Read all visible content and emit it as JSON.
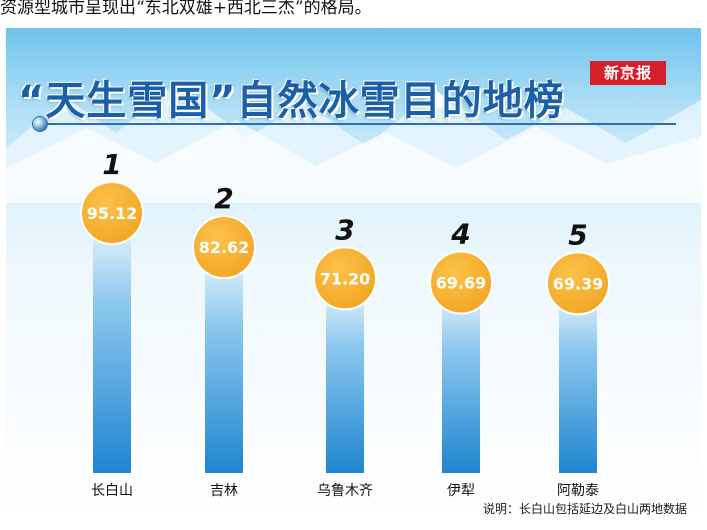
{
  "article": {
    "intro_text": "资源型城市呈现出“东北双雄+西北三杰”的格局。"
  },
  "infographic": {
    "title": "“天生雪国”自然冰雪目的地榜",
    "logo_text": "新京报",
    "note": "说明：长白山包括延边及白山两地数据"
  },
  "colors": {
    "bar_top": "#f4fafe",
    "bar_bottom": "#1f86cf",
    "bubble": "#f2a623",
    "bubble_border": "#ffffff",
    "title": "#1b5fa8",
    "logo_bg": "#d4202a"
  },
  "chart_data": {
    "type": "bar",
    "title": "“天生雪国”自然冰雪目的地榜",
    "categories": [
      "长白山",
      "吉林",
      "乌鲁木齐",
      "伊犁",
      "阿勒泰"
    ],
    "ranks": [
      "1",
      "2",
      "3",
      "4",
      "5"
    ],
    "values": [
      95.12,
      82.62,
      71.2,
      69.69,
      69.39
    ],
    "value_labels": [
      "95.12",
      "82.62",
      "71.20",
      "69.69",
      "69.39"
    ],
    "ylim": [
      0,
      100
    ],
    "grid": false,
    "legend": "none"
  }
}
